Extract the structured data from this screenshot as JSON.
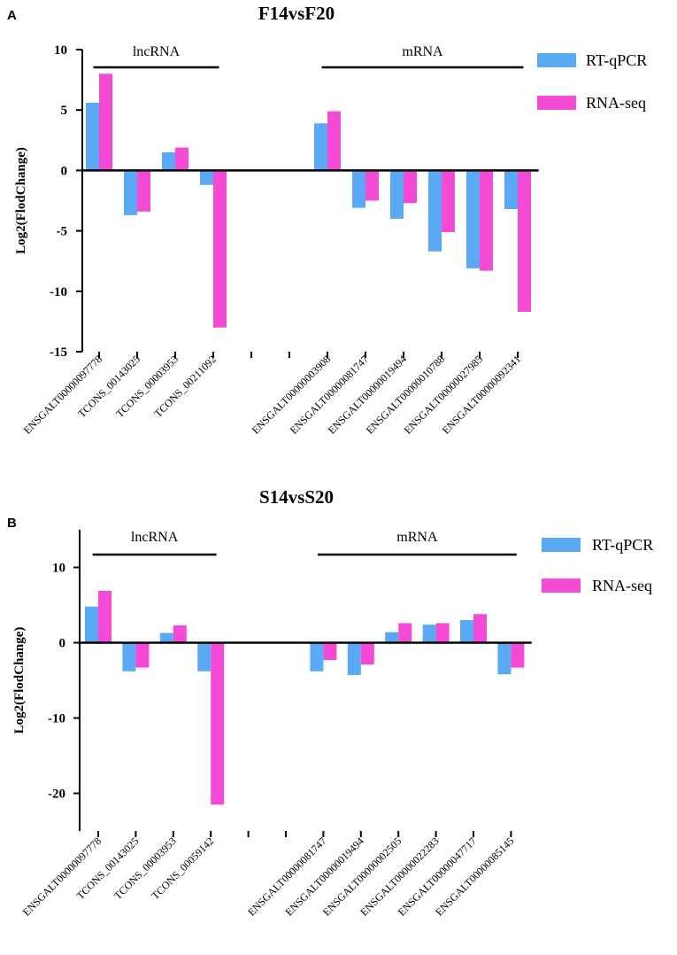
{
  "chart_data": [
    {
      "type": "bar",
      "panel": "A",
      "title": "F14vsF20",
      "xlabel": "",
      "ylabel": "Log2(FlodChange)",
      "ylim": [
        -15,
        10
      ],
      "yticks": [
        10,
        5,
        0,
        -5,
        -10,
        -15
      ],
      "categories": [
        "ENSGALT00000097778",
        "TCONS_00143025",
        "TCONS_00003953",
        "TCONS_00211092",
        "",
        "",
        "ENSGALT00000003908",
        "ENSGALT00000081747",
        "ENSGALT00000019494",
        "ENSGALT00000010788",
        "ENSGALT00000027985",
        "ENSGALT00000092341"
      ],
      "series": [
        {
          "name": "RT-qPCR",
          "color": "#5aa9f5",
          "values": [
            5.6,
            -3.7,
            1.5,
            -1.2,
            null,
            null,
            3.9,
            -3.1,
            -4.0,
            -6.7,
            -8.1,
            -3.2
          ]
        },
        {
          "name": "RNA-seq",
          "color": "#f54ad6",
          "values": [
            8.0,
            -3.4,
            1.9,
            -13.0,
            null,
            null,
            4.9,
            -2.5,
            -2.7,
            -5.1,
            -8.3,
            -11.7
          ]
        }
      ],
      "groups": [
        {
          "label": "lncRNA",
          "from": 0,
          "to": 3
        },
        {
          "label": "mRNA",
          "from": 6,
          "to": 11
        }
      ],
      "legend": "top-right"
    },
    {
      "type": "bar",
      "panel": "B",
      "title": "S14vsS20",
      "xlabel": "",
      "ylabel": "Log2(FlodChange)",
      "ylim": [
        -25,
        15
      ],
      "yticks": [
        10,
        0,
        -10,
        -20
      ],
      "categories": [
        "ENSGALT00000097778",
        "TCONS_00143025",
        "TCONS_00003953",
        "TCONS_00059142",
        "",
        "",
        "ENSGALT00000081747",
        "ENSGALT00000019494",
        "ENSGALT00000002505",
        "ENSGALT00000022283",
        "ENSGALT00000047717",
        "ENSGALT00000085145"
      ],
      "series": [
        {
          "name": "RT-qPCR",
          "color": "#5aa9f5",
          "values": [
            4.8,
            -3.8,
            1.3,
            -3.8,
            null,
            null,
            -3.8,
            -4.3,
            1.4,
            2.4,
            3.0,
            -4.2
          ]
        },
        {
          "name": "RNA-seq",
          "color": "#f54ad6",
          "values": [
            6.9,
            -3.3,
            2.3,
            -21.5,
            null,
            null,
            -2.3,
            -2.9,
            2.6,
            2.6,
            3.8,
            -3.3
          ]
        }
      ],
      "groups": [
        {
          "label": "lncRNA",
          "from": 0,
          "to": 3
        },
        {
          "label": "mRNA",
          "from": 6,
          "to": 11
        }
      ],
      "legend": "top-right"
    }
  ]
}
